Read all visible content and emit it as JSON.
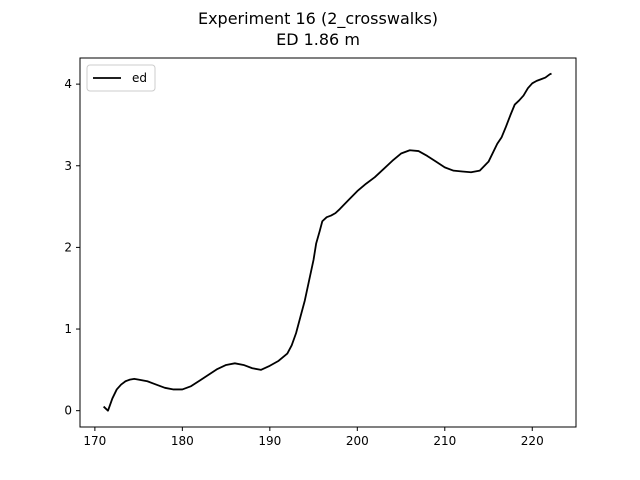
{
  "chart_data": {
    "type": "line",
    "title": "Experiment 16 (2_crosswalks)",
    "subtitle": "ED 1.86 m",
    "xlabel": "",
    "ylabel": "",
    "xlim": [
      168.3,
      225.0
    ],
    "ylim": [
      -0.2,
      4.32
    ],
    "x_ticks": [
      170,
      180,
      190,
      200,
      210,
      220
    ],
    "y_ticks": [
      0,
      1,
      2,
      3,
      4
    ],
    "grid": false,
    "legend": {
      "position": "top-left",
      "entries": [
        "ed"
      ]
    },
    "series": [
      {
        "name": "ed",
        "color": "#000000",
        "points": [
          [
            171.0,
            0.05
          ],
          [
            171.5,
            0.0
          ],
          [
            172.0,
            0.15
          ],
          [
            172.5,
            0.26
          ],
          [
            173.0,
            0.32
          ],
          [
            173.5,
            0.36
          ],
          [
            174.0,
            0.38
          ],
          [
            174.5,
            0.39
          ],
          [
            175.0,
            0.38
          ],
          [
            176.0,
            0.36
          ],
          [
            177.0,
            0.32
          ],
          [
            178.0,
            0.28
          ],
          [
            179.0,
            0.26
          ],
          [
            180.0,
            0.26
          ],
          [
            181.0,
            0.3
          ],
          [
            182.0,
            0.37
          ],
          [
            183.0,
            0.44
          ],
          [
            184.0,
            0.51
          ],
          [
            185.0,
            0.56
          ],
          [
            186.0,
            0.58
          ],
          [
            187.0,
            0.56
          ],
          [
            188.0,
            0.52
          ],
          [
            189.0,
            0.5
          ],
          [
            190.0,
            0.55
          ],
          [
            191.0,
            0.61
          ],
          [
            192.0,
            0.7
          ],
          [
            192.5,
            0.8
          ],
          [
            193.0,
            0.95
          ],
          [
            193.5,
            1.15
          ],
          [
            194.0,
            1.35
          ],
          [
            194.5,
            1.6
          ],
          [
            195.0,
            1.85
          ],
          [
            195.3,
            2.05
          ],
          [
            195.7,
            2.2
          ],
          [
            196.0,
            2.32
          ],
          [
            196.5,
            2.37
          ],
          [
            197.0,
            2.39
          ],
          [
            197.5,
            2.42
          ],
          [
            198.0,
            2.47
          ],
          [
            199.0,
            2.58
          ],
          [
            200.0,
            2.69
          ],
          [
            201.0,
            2.78
          ],
          [
            202.0,
            2.86
          ],
          [
            203.0,
            2.96
          ],
          [
            204.0,
            3.06
          ],
          [
            205.0,
            3.15
          ],
          [
            206.0,
            3.19
          ],
          [
            207.0,
            3.18
          ],
          [
            208.0,
            3.12
          ],
          [
            209.0,
            3.05
          ],
          [
            210.0,
            2.98
          ],
          [
            211.0,
            2.94
          ],
          [
            212.0,
            2.93
          ],
          [
            213.0,
            2.92
          ],
          [
            214.0,
            2.94
          ],
          [
            215.0,
            3.05
          ],
          [
            216.0,
            3.27
          ],
          [
            216.5,
            3.35
          ],
          [
            217.0,
            3.48
          ],
          [
            217.5,
            3.62
          ],
          [
            218.0,
            3.75
          ],
          [
            218.5,
            3.8
          ],
          [
            219.0,
            3.86
          ],
          [
            219.5,
            3.95
          ],
          [
            220.0,
            4.01
          ],
          [
            220.5,
            4.04
          ],
          [
            221.0,
            4.06
          ],
          [
            221.5,
            4.08
          ],
          [
            222.0,
            4.12
          ],
          [
            222.2,
            4.13
          ]
        ]
      }
    ]
  }
}
